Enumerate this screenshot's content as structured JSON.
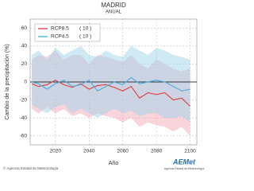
{
  "chart_data": {
    "type": "line",
    "title": "MADRID",
    "subtitle": "ANUAL",
    "x_label": "Año",
    "y_label": "Cambio de la precipitación (%)",
    "x": [
      2006,
      2010,
      2015,
      2020,
      2025,
      2030,
      2035,
      2040,
      2045,
      2050,
      2055,
      2060,
      2065,
      2070,
      2075,
      2080,
      2085,
      2090,
      2095,
      2100
    ],
    "series": [
      {
        "name": "RCP8.5",
        "members": "( 10 )",
        "color": "#e0464c",
        "band_color": "#f4aab5",
        "values": [
          -2,
          -5,
          -3,
          2,
          -3,
          -6,
          -2,
          -8,
          -4,
          -3,
          -6,
          -10,
          -5,
          -18,
          -12,
          -14,
          -12,
          -20,
          -18,
          -27
        ],
        "upper": [
          25,
          30,
          28,
          35,
          25,
          30,
          30,
          20,
          30,
          28,
          25,
          22,
          30,
          20,
          15,
          25,
          20,
          15,
          12,
          15
        ],
        "lower": [
          -30,
          -35,
          -28,
          -35,
          -30,
          -38,
          -35,
          -40,
          -35,
          -38,
          -40,
          -45,
          -40,
          -50,
          -45,
          -48,
          -50,
          -55,
          -50,
          -60
        ]
      },
      {
        "name": "RCP4.5",
        "members": "( 10 )",
        "color": "#4fb0de",
        "band_color": "#9fd3ec",
        "values": [
          0,
          -2,
          -8,
          -2,
          2,
          -5,
          -3,
          2,
          -10,
          -5,
          0,
          -3,
          5,
          -2,
          0,
          2,
          0,
          -5,
          -10,
          -8
        ],
        "upper": [
          30,
          35,
          25,
          38,
          30,
          35,
          40,
          30,
          28,
          35,
          30,
          28,
          40,
          35,
          30,
          38,
          35,
          30,
          28,
          25
        ],
        "lower": [
          -25,
          -30,
          -35,
          -28,
          -25,
          -35,
          -30,
          -35,
          -40,
          -35,
          -30,
          -35,
          -32,
          -38,
          -35,
          -35,
          -40,
          -40,
          -38,
          -45
        ]
      }
    ],
    "xlim": [
      2005,
      2104
    ],
    "xticks": [
      2020,
      2040,
      2060,
      2080,
      2100
    ],
    "ylim": [
      -70,
      70
    ],
    "yticks": [
      -60,
      -40,
      -20,
      0,
      20,
      40,
      60
    ],
    "grid": true,
    "legend": "upper-left"
  },
  "footer": {
    "credit": "© Agencia Estatal de Meteorología",
    "logo": "AEMet",
    "logo_sub": "Agencia Estatal de Meteorología"
  }
}
